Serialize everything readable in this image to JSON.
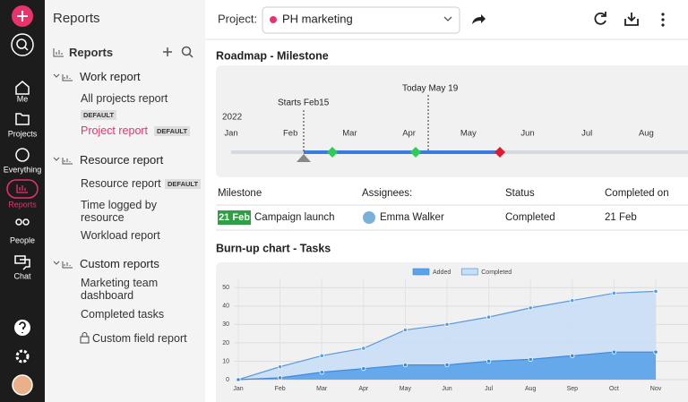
{
  "sidebar": {
    "items": [
      {
        "label": "Me"
      },
      {
        "label": "Projects"
      },
      {
        "label": "Everything"
      },
      {
        "label": "Reports"
      },
      {
        "label": "People"
      },
      {
        "label": "Chat"
      }
    ]
  },
  "nav": {
    "title": "Reports",
    "section": "Reports",
    "groups": [
      {
        "title": "Work report",
        "items": [
          {
            "label": "All projects report",
            "badge": "DEFAULT"
          },
          {
            "label": "Project report",
            "badge": "DEFAULT"
          }
        ]
      },
      {
        "title": "Resource report",
        "items": [
          {
            "label": "Resource report",
            "badge": "DEFAULT"
          },
          {
            "label": "Time logged by resource"
          },
          {
            "label": "Workload report"
          }
        ]
      },
      {
        "title": "Custom reports",
        "items": [
          {
            "label": "Marketing team dashboard"
          },
          {
            "label": "Completed tasks"
          },
          {
            "label": "Custom field report"
          }
        ]
      }
    ]
  },
  "toolbar": {
    "label": "Project:",
    "project": "PH marketing"
  },
  "roadmap": {
    "title": "Roadmap - Milestone",
    "year": "2022",
    "months": [
      "Jan",
      "Feb",
      "Mar",
      "Apr",
      "May",
      "Jun",
      "Jul",
      "Aug"
    ],
    "markers": [
      {
        "label": "Starts Feb15"
      },
      {
        "label": "Today May 19"
      }
    ]
  },
  "milestone_table": {
    "headers": [
      "Milestone",
      "Assignees:",
      "Status",
      "Completed on"
    ],
    "rows": [
      {
        "tag": "21 Feb",
        "name": "Campaign launch",
        "assignee": "Emma Walker",
        "status": "Completed",
        "completed_on": "21 Feb"
      }
    ]
  },
  "burnup": {
    "title": "Burn-up chart - Tasks",
    "type": "line",
    "x": [
      "Jan",
      "Feb",
      "Mar",
      "Apr",
      "May",
      "Jun",
      "Jul",
      "Aug",
      "Sep",
      "Oct",
      "Nov"
    ],
    "series": [
      {
        "name": "Added",
        "color": "#5aa3ea",
        "values": [
          0,
          1,
          4,
          6,
          8,
          8,
          10,
          11,
          13,
          15,
          15
        ]
      },
      {
        "name": "Completed",
        "color": "#c9def5",
        "values": [
          0,
          7,
          13,
          17,
          27,
          30,
          34,
          39,
          43,
          47,
          48
        ]
      }
    ],
    "ylim": [
      0,
      55
    ],
    "yticks": [
      0,
      10,
      20,
      30,
      40,
      50
    ],
    "grid": true,
    "legend": "top"
  }
}
